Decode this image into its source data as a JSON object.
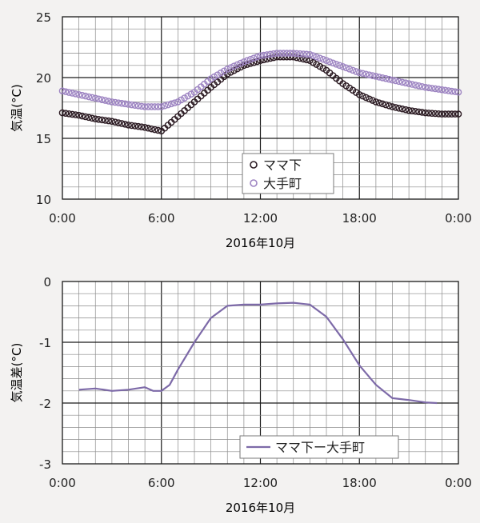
{
  "chart_data": [
    {
      "type": "scatter",
      "xlabel": "2016年10月",
      "ylabel": "気温(°C)",
      "xticks": [
        "0:00",
        "6:00",
        "12:00",
        "18:00",
        "0:00"
      ],
      "yticks": [
        "25",
        "20",
        "15",
        "10"
      ],
      "xlim": [
        0,
        24
      ],
      "ylim": [
        10,
        25
      ],
      "legend_position": "bottom-center",
      "grid": true,
      "series": [
        {
          "name": "ママ下",
          "color": "#2b1a22",
          "marker": "open-circle",
          "x": [
            0,
            1,
            2,
            3,
            4,
            5,
            6,
            7,
            8,
            9,
            10,
            11,
            12,
            13,
            14,
            15,
            16,
            17,
            18,
            19,
            20,
            21,
            22,
            23,
            24
          ],
          "y": [
            17.1,
            16.9,
            16.6,
            16.4,
            16.1,
            15.9,
            15.6,
            16.8,
            18.0,
            19.2,
            20.3,
            21.0,
            21.4,
            21.7,
            21.7,
            21.4,
            20.6,
            19.5,
            18.6,
            18.0,
            17.6,
            17.3,
            17.1,
            17.0,
            17.0
          ]
        },
        {
          "name": "大手町",
          "color": "#9d84c2",
          "marker": "open-circle",
          "x": [
            0,
            1,
            2,
            3,
            4,
            5,
            6,
            7,
            8,
            9,
            10,
            11,
            12,
            13,
            14,
            15,
            16,
            17,
            18,
            19,
            20,
            21,
            22,
            23,
            24
          ],
          "y": [
            18.9,
            18.6,
            18.3,
            18.0,
            17.8,
            17.6,
            17.6,
            18.0,
            18.8,
            19.9,
            20.7,
            21.3,
            21.8,
            22.0,
            22.0,
            21.9,
            21.4,
            20.9,
            20.4,
            20.1,
            19.8,
            19.5,
            19.2,
            19.0,
            18.8
          ]
        }
      ]
    },
    {
      "type": "line",
      "xlabel": "2016年10月",
      "ylabel": "気温差(°C)",
      "xticks": [
        "0:00",
        "6:00",
        "12:00",
        "18:00",
        "0:00"
      ],
      "yticks": [
        "0",
        "-1",
        "-2",
        "-3"
      ],
      "xlim": [
        0,
        24
      ],
      "ylim": [
        -3,
        0
      ],
      "legend_position": "bottom-center",
      "grid": true,
      "series": [
        {
          "name": "ママ下ー大手町",
          "color": "#7d6aa8",
          "x": [
            1,
            2,
            3,
            4,
            5,
            5.5,
            6,
            6.5,
            7,
            8,
            9,
            10,
            11,
            12,
            13,
            14,
            15,
            16,
            17,
            18,
            19,
            20,
            21,
            22,
            22.7
          ],
          "y": [
            -1.78,
            -1.76,
            -1.8,
            -1.78,
            -1.74,
            -1.8,
            -1.8,
            -1.7,
            -1.45,
            -1.0,
            -0.6,
            -0.4,
            -0.38,
            -0.38,
            -0.36,
            -0.35,
            -0.38,
            -0.58,
            -0.95,
            -1.38,
            -1.7,
            -1.92,
            -1.95,
            -1.99,
            -2.0
          ]
        }
      ]
    }
  ]
}
